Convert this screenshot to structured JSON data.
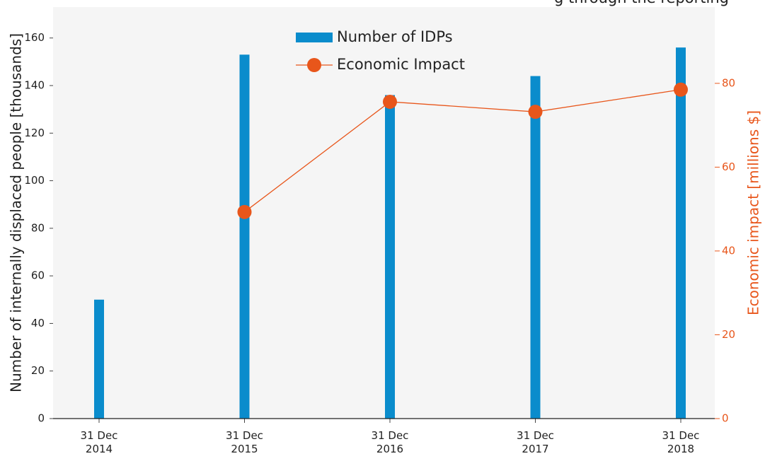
{
  "chart_data": {
    "type": "bar_line",
    "title": "g through the reporting",
    "categories": [
      "31 Dec\n2014",
      "31 Dec\n2015",
      "31 Dec\n2016",
      "31 Dec\n2017",
      "31 Dec\n2018"
    ],
    "series": [
      {
        "name": "Number of IDPs",
        "color": "#0a8ccc",
        "type": "bar",
        "values": [
          50,
          153,
          136,
          144,
          156
        ]
      },
      {
        "name": "Economic Impact",
        "color": "#e8561b",
        "type": "line",
        "axis": "y2",
        "values": [
          null,
          49.3,
          75.6,
          73.2,
          78.5
        ]
      }
    ],
    "ylabel": "Number of internally displaced people [thousands]",
    "y2label": "Economic impact [millions $]",
    "ylim": [
      0,
      173
    ],
    "yticks": [
      0,
      20,
      40,
      60,
      80,
      100,
      120,
      140,
      160
    ],
    "y2lim": [
      0,
      98.2
    ],
    "y2ticks": [
      0,
      20,
      40,
      60,
      80
    ],
    "legend": "top"
  }
}
